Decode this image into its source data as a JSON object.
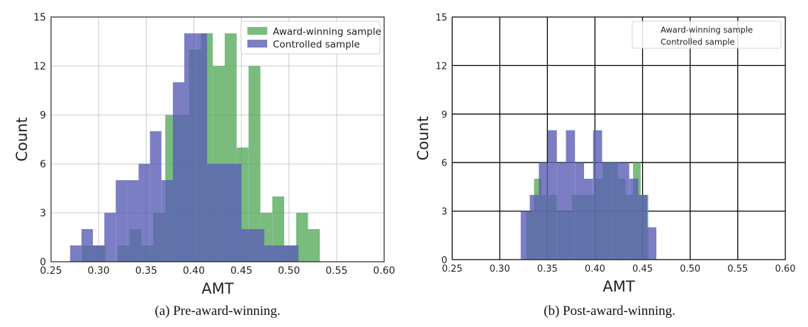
{
  "figure": {
    "captions": [
      "(a) Pre-award-winning.",
      "(b) Post-award-winning."
    ]
  },
  "colors": {
    "award": "#5aab5f",
    "controlled": "#5b5fb5"
  },
  "chart_data": [
    {
      "type": "bar",
      "title": "",
      "xlabel": "AMT",
      "ylabel": "Count",
      "xlim": [
        0.25,
        0.6
      ],
      "ylim": [
        0,
        15
      ],
      "xticks": [
        "0.25",
        "0.30",
        "0.35",
        "0.40",
        "0.45",
        "0.50",
        "0.55",
        "0.60"
      ],
      "yticks": [
        "0",
        "3",
        "6",
        "9",
        "12",
        "15"
      ],
      "grid": true,
      "grid_color": "#c8c8c8",
      "legend": {
        "position": "top-right",
        "boxed": true
      },
      "series": [
        {
          "name": "Award-winning sample",
          "color": "#5aab5f",
          "bin_width": 0.0125,
          "bins": [
            [
              0.2825,
              1
            ],
            [
              0.295,
              1
            ],
            [
              0.3075,
              0
            ],
            [
              0.32,
              1
            ],
            [
              0.3325,
              2
            ],
            [
              0.345,
              1
            ],
            [
              0.3575,
              3
            ],
            [
              0.37,
              9
            ],
            [
              0.3825,
              9
            ],
            [
              0.395,
              13
            ],
            [
              0.4075,
              14
            ],
            [
              0.42,
              12
            ],
            [
              0.4325,
              14
            ],
            [
              0.445,
              7
            ],
            [
              0.4575,
              12
            ],
            [
              0.47,
              3
            ],
            [
              0.4825,
              4
            ],
            [
              0.495,
              1
            ],
            [
              0.5075,
              3
            ],
            [
              0.52,
              2
            ]
          ]
        },
        {
          "name": "Controlled sample",
          "color": "#5b5fb5",
          "bin_width": 0.012,
          "bins": [
            [
              0.27,
              1
            ],
            [
              0.282,
              2
            ],
            [
              0.294,
              1
            ],
            [
              0.306,
              3
            ],
            [
              0.318,
              5
            ],
            [
              0.33,
              5
            ],
            [
              0.342,
              6
            ],
            [
              0.354,
              8
            ],
            [
              0.366,
              5
            ],
            [
              0.378,
              11
            ],
            [
              0.39,
              14
            ],
            [
              0.402,
              14
            ],
            [
              0.414,
              6
            ],
            [
              0.426,
              6
            ],
            [
              0.438,
              6
            ],
            [
              0.45,
              2
            ],
            [
              0.462,
              2
            ],
            [
              0.474,
              1
            ],
            [
              0.486,
              1
            ],
            [
              0.498,
              1
            ]
          ]
        }
      ]
    },
    {
      "type": "bar",
      "title": "",
      "xlabel": "AMT",
      "ylabel": "Count",
      "xlim": [
        0.25,
        0.6
      ],
      "ylim": [
        0,
        15
      ],
      "xticks": [
        "0.25",
        "0.30",
        "0.35",
        "0.40",
        "0.45",
        "0.50",
        "0.55",
        "0.60"
      ],
      "yticks": [
        "0",
        "3",
        "6",
        "9",
        "12",
        "15"
      ],
      "grid": true,
      "grid_color": "#000000",
      "legend": {
        "position": "top-right",
        "boxed": true,
        "swatches": false
      },
      "series": [
        {
          "name": "Award-winning sample",
          "color": "#5aab5f",
          "bin_width": 0.008,
          "bins": [
            [
              0.328,
              3
            ],
            [
              0.336,
              5
            ],
            [
              0.344,
              4
            ],
            [
              0.352,
              4
            ],
            [
              0.36,
              3
            ],
            [
              0.368,
              3
            ],
            [
              0.376,
              4
            ],
            [
              0.384,
              4
            ],
            [
              0.392,
              4
            ],
            [
              0.4,
              5
            ],
            [
              0.408,
              6
            ],
            [
              0.416,
              6
            ],
            [
              0.424,
              5
            ],
            [
              0.432,
              4
            ],
            [
              0.44,
              6
            ],
            [
              0.448,
              4
            ]
          ]
        },
        {
          "name": "Controlled sample",
          "color": "#5b5fb5",
          "bin_width": 0.0095,
          "bins": [
            [
              0.322,
              3
            ],
            [
              0.3315,
              4
            ],
            [
              0.341,
              6
            ],
            [
              0.3505,
              8
            ],
            [
              0.36,
              6
            ],
            [
              0.3695,
              8
            ],
            [
              0.379,
              6
            ],
            [
              0.3885,
              5
            ],
            [
              0.398,
              8
            ],
            [
              0.4075,
              6
            ],
            [
              0.417,
              6
            ],
            [
              0.4265,
              6
            ],
            [
              0.436,
              5
            ],
            [
              0.4455,
              4
            ],
            [
              0.455,
              2
            ]
          ]
        }
      ]
    }
  ]
}
